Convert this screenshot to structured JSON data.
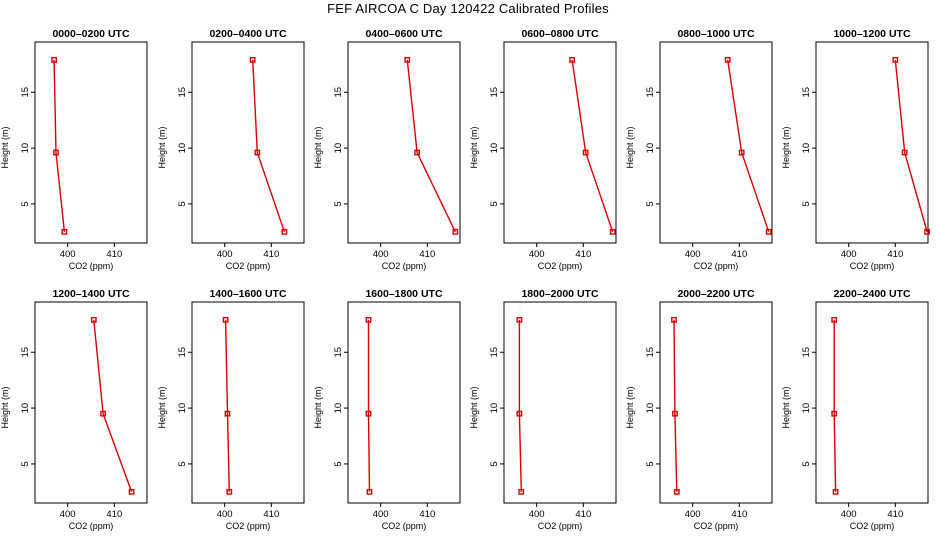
{
  "title": "FEF  AIRCOA C  Day 120422  Calibrated Profiles",
  "colors": {
    "series": "#dd0000",
    "axis": "#000000",
    "background": "#ffffff"
  },
  "chart_data": [
    {
      "type": "line",
      "title": "0000–0200 UTC",
      "xlabel": "CO2 (ppm)",
      "ylabel": "Height (m)",
      "xlim": [
        393,
        417
      ],
      "ylim": [
        1.5,
        19.5
      ],
      "xticks": [
        400,
        410
      ],
      "yticks": [
        5,
        10,
        15
      ],
      "series": [
        {
          "x": [
            397.1,
            397.5,
            399.3
          ],
          "y": [
            17.9,
            9.6,
            2.5
          ]
        }
      ]
    },
    {
      "type": "line",
      "title": "0200–0400 UTC",
      "xlabel": "CO2 (ppm)",
      "ylabel": "Height (m)",
      "xlim": [
        393,
        417
      ],
      "ylim": [
        1.5,
        19.5
      ],
      "xticks": [
        400,
        410
      ],
      "yticks": [
        5,
        10,
        15
      ],
      "series": [
        {
          "x": [
            406.0,
            407.0,
            412.8
          ],
          "y": [
            17.9,
            9.6,
            2.5
          ]
        }
      ]
    },
    {
      "type": "line",
      "title": "0400–0600 UTC",
      "xlabel": "CO2 (ppm)",
      "ylabel": "Height (m)",
      "xlim": [
        393,
        417
      ],
      "ylim": [
        1.5,
        19.5
      ],
      "xticks": [
        400,
        410
      ],
      "yticks": [
        5,
        10,
        15
      ],
      "series": [
        {
          "x": [
            405.7,
            407.8,
            416.0
          ],
          "y": [
            17.9,
            9.6,
            2.5
          ]
        }
      ]
    },
    {
      "type": "line",
      "title": "0600–0800 UTC",
      "xlabel": "CO2 (ppm)",
      "ylabel": "Height (m)",
      "xlim": [
        393,
        417
      ],
      "ylim": [
        1.5,
        19.5
      ],
      "xticks": [
        400,
        410
      ],
      "yticks": [
        5,
        10,
        15
      ],
      "series": [
        {
          "x": [
            407.6,
            410.5,
            416.3
          ],
          "y": [
            17.9,
            9.6,
            2.5
          ]
        }
      ]
    },
    {
      "type": "line",
      "title": "0800–1000 UTC",
      "xlabel": "CO2 (ppm)",
      "ylabel": "Height (m)",
      "xlim": [
        393,
        417
      ],
      "ylim": [
        1.5,
        19.5
      ],
      "xticks": [
        400,
        410
      ],
      "yticks": [
        5,
        10,
        15
      ],
      "series": [
        {
          "x": [
            407.5,
            410.5,
            416.3
          ],
          "y": [
            17.9,
            9.6,
            2.5
          ]
        }
      ]
    },
    {
      "type": "line",
      "title": "1000–1200 UTC",
      "xlabel": "CO2 (ppm)",
      "ylabel": "Height (m)",
      "xlim": [
        393,
        417
      ],
      "ylim": [
        1.5,
        19.5
      ],
      "xticks": [
        400,
        410
      ],
      "yticks": [
        5,
        10,
        15
      ],
      "series": [
        {
          "x": [
            410.0,
            412.0,
            416.8
          ],
          "y": [
            17.9,
            9.6,
            2.5
          ]
        }
      ]
    },
    {
      "type": "line",
      "title": "1200–1400 UTC",
      "xlabel": "CO2 (ppm)",
      "ylabel": "Height (m)",
      "xlim": [
        393,
        417
      ],
      "ylim": [
        1.5,
        19.5
      ],
      "xticks": [
        400,
        410
      ],
      "yticks": [
        5,
        10,
        15
      ],
      "series": [
        {
          "x": [
            405.6,
            407.6,
            413.7
          ],
          "y": [
            17.9,
            9.5,
            2.5
          ]
        }
      ]
    },
    {
      "type": "line",
      "title": "1400–1600 UTC",
      "xlabel": "CO2 (ppm)",
      "ylabel": "Height (m)",
      "xlim": [
        393,
        417
      ],
      "ylim": [
        1.5,
        19.5
      ],
      "xticks": [
        400,
        410
      ],
      "yticks": [
        5,
        10,
        15
      ],
      "series": [
        {
          "x": [
            400.2,
            400.6,
            401.0
          ],
          "y": [
            17.9,
            9.5,
            2.5
          ]
        }
      ]
    },
    {
      "type": "line",
      "title": "1600–1800 UTC",
      "xlabel": "CO2 (ppm)",
      "ylabel": "Height (m)",
      "xlim": [
        393,
        417
      ],
      "ylim": [
        1.5,
        19.5
      ],
      "xticks": [
        400,
        410
      ],
      "yticks": [
        5,
        10,
        15
      ],
      "series": [
        {
          "x": [
            397.4,
            397.4,
            397.6
          ],
          "y": [
            17.9,
            9.5,
            2.5
          ]
        }
      ]
    },
    {
      "type": "line",
      "title": "1800–2000 UTC",
      "xlabel": "CO2 (ppm)",
      "ylabel": "Height (m)",
      "xlim": [
        393,
        417
      ],
      "ylim": [
        1.5,
        19.5
      ],
      "xticks": [
        400,
        410
      ],
      "yticks": [
        5,
        10,
        15
      ],
      "series": [
        {
          "x": [
            396.3,
            396.3,
            396.7
          ],
          "y": [
            17.9,
            9.5,
            2.5
          ]
        }
      ]
    },
    {
      "type": "line",
      "title": "2000–2200 UTC",
      "xlabel": "CO2 (ppm)",
      "ylabel": "Height (m)",
      "xlim": [
        393,
        417
      ],
      "ylim": [
        1.5,
        19.5
      ],
      "xticks": [
        400,
        410
      ],
      "yticks": [
        5,
        10,
        15
      ],
      "series": [
        {
          "x": [
            396.0,
            396.2,
            396.6
          ],
          "y": [
            17.9,
            9.5,
            2.5
          ]
        }
      ]
    },
    {
      "type": "line",
      "title": "2200–2400 UTC",
      "xlabel": "CO2 (ppm)",
      "ylabel": "Height (m)",
      "xlim": [
        393,
        417
      ],
      "ylim": [
        1.5,
        19.5
      ],
      "xticks": [
        400,
        410
      ],
      "yticks": [
        5,
        10,
        15
      ],
      "series": [
        {
          "x": [
            396.9,
            396.9,
            397.2
          ],
          "y": [
            17.9,
            9.5,
            2.5
          ]
        }
      ]
    }
  ]
}
